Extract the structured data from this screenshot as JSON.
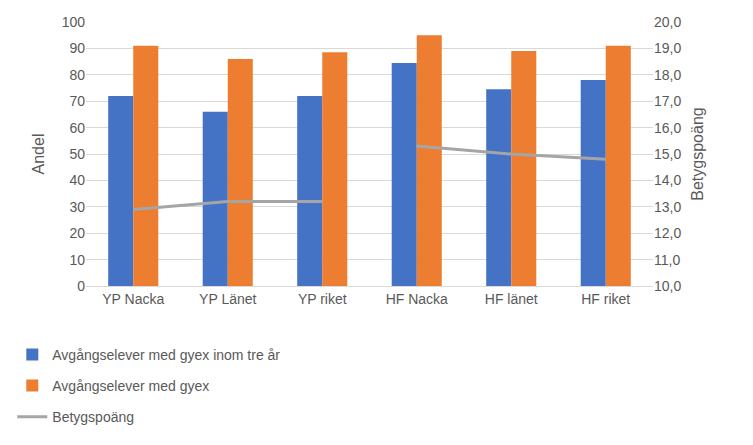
{
  "chart_data": {
    "type": "bar",
    "categories": [
      "YP Nacka",
      "YP Länet",
      "YP riket",
      "HF Nacka",
      "HF länet",
      "HF riket"
    ],
    "series": [
      {
        "name": "Avgångselever med gyex inom tre år",
        "color": "#4472c4",
        "type": "bar",
        "values": [
          72,
          66,
          72,
          84.5,
          74.5,
          78
        ]
      },
      {
        "name": "Avgångselever med gyex",
        "color": "#ed7d31",
        "type": "bar",
        "values": [
          91,
          86,
          88.5,
          95,
          89,
          91
        ]
      },
      {
        "name": "Betygspoäng",
        "color": "#a5a5a5",
        "type": "line",
        "axis": "y2",
        "values": [
          12.9,
          13.2,
          13.2,
          null,
          null,
          null
        ]
      },
      {
        "name": "Betygspoäng",
        "color": "#a5a5a5",
        "type": "line",
        "axis": "y2",
        "values": [
          null,
          null,
          null,
          15.3,
          15.0,
          14.8
        ]
      }
    ],
    "y_label": "Andel",
    "y2_label": "Betygspoäng",
    "ylim": [
      0,
      100
    ],
    "yticks": [
      0,
      10,
      20,
      30,
      40,
      50,
      60,
      70,
      80,
      90,
      100
    ],
    "y2lim": [
      10,
      20
    ],
    "y2ticks": [
      {
        "value": 10,
        "label": "10,0"
      },
      {
        "value": 11,
        "label": "11,0"
      },
      {
        "value": 12,
        "label": "12,0"
      },
      {
        "value": 13,
        "label": "13,0"
      },
      {
        "value": 14,
        "label": "14,0"
      },
      {
        "value": 15,
        "label": "15,0"
      },
      {
        "value": 16,
        "label": "16,0"
      },
      {
        "value": 17,
        "label": "17,0"
      },
      {
        "value": 18,
        "label": "18,0"
      },
      {
        "value": 19,
        "label": "19,0"
      },
      {
        "value": 20,
        "label": "20,0"
      }
    ],
    "grid": true,
    "legend": "bottom"
  }
}
